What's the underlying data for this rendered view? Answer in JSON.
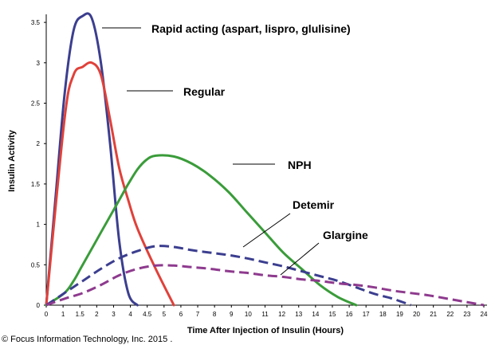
{
  "chart_data": {
    "type": "line",
    "title": "",
    "xlabel": "Time After Injection of Insulin (Hours)",
    "ylabel": "Insulin Activity",
    "x_ticks": [
      "0",
      "1",
      "1.5",
      "2",
      "3",
      "4",
      "4.5",
      "5",
      "6",
      "7",
      "8",
      "9",
      "10",
      "11",
      "12",
      "13",
      "14",
      "15",
      "16",
      "17",
      "18",
      "19",
      "20",
      "21",
      "22",
      "23",
      "24"
    ],
    "y_ticks": [
      "0",
      "0.5",
      "1",
      "1.5",
      "2",
      "2.5",
      "3",
      "3.5"
    ],
    "ylim": [
      0,
      3.6
    ],
    "grid": false,
    "legend": "none",
    "series": [
      {
        "name": "Rapid acting (aspart, lispro, glulisine)",
        "color": "#3b3e8f",
        "style": "solid",
        "points": [
          [
            0,
            0
          ],
          [
            0.5,
            1.3
          ],
          [
            1,
            2.6
          ],
          [
            1.5,
            3.4
          ],
          [
            2,
            3.58
          ],
          [
            2.5,
            3.55
          ],
          [
            3,
            3.0
          ],
          [
            3.5,
            2.0
          ],
          [
            4,
            0.8
          ],
          [
            4.5,
            0.15
          ],
          [
            5,
            0
          ]
        ]
      },
      {
        "name": "Regular",
        "color": "#e0413a",
        "style": "solid",
        "points": [
          [
            0,
            0
          ],
          [
            1,
            2.3
          ],
          [
            1.5,
            2.85
          ],
          [
            2,
            2.95
          ],
          [
            2.5,
            3.0
          ],
          [
            3,
            2.85
          ],
          [
            3.5,
            2.3
          ],
          [
            4,
            1.7
          ],
          [
            4.5,
            1.3
          ],
          [
            5,
            0.95
          ],
          [
            6,
            0.45
          ],
          [
            7,
            0
          ]
        ]
      },
      {
        "name": "NPH",
        "color": "#3a9c3a",
        "style": "solid",
        "points": [
          [
            0,
            0
          ],
          [
            1,
            0.15
          ],
          [
            1.5,
            0.3
          ],
          [
            2,
            0.5
          ],
          [
            3,
            0.9
          ],
          [
            4,
            1.3
          ],
          [
            4.5,
            1.5
          ],
          [
            5,
            1.68
          ],
          [
            5.5,
            1.8
          ],
          [
            6,
            1.85
          ],
          [
            7,
            1.84
          ],
          [
            8,
            1.75
          ],
          [
            9,
            1.6
          ],
          [
            10,
            1.4
          ],
          [
            11,
            1.15
          ],
          [
            12,
            0.9
          ],
          [
            13,
            0.65
          ],
          [
            14,
            0.45
          ],
          [
            15,
            0.25
          ],
          [
            16,
            0.1
          ],
          [
            17,
            0
          ]
        ]
      },
      {
        "name": "Detemir",
        "color": "#3b3e8f",
        "style": "dashed",
        "points": [
          [
            0,
            0
          ],
          [
            1,
            0.15
          ],
          [
            2,
            0.3
          ],
          [
            3,
            0.45
          ],
          [
            4,
            0.58
          ],
          [
            5,
            0.67
          ],
          [
            6,
            0.73
          ],
          [
            7,
            0.72
          ],
          [
            8,
            0.68
          ],
          [
            9,
            0.65
          ],
          [
            10,
            0.62
          ],
          [
            11,
            0.58
          ],
          [
            12,
            0.53
          ],
          [
            13,
            0.48
          ],
          [
            14,
            0.42
          ],
          [
            15,
            0.36
          ],
          [
            16,
            0.3
          ],
          [
            17,
            0.22
          ],
          [
            18,
            0.14
          ],
          [
            19,
            0.08
          ],
          [
            20,
            0
          ]
        ]
      },
      {
        "name": "Glargine",
        "color": "#8e3a8e",
        "style": "dashed",
        "points": [
          [
            0,
            0
          ],
          [
            1,
            0.08
          ],
          [
            2,
            0.15
          ],
          [
            3,
            0.25
          ],
          [
            4,
            0.37
          ],
          [
            5,
            0.45
          ],
          [
            6,
            0.49
          ],
          [
            7,
            0.49
          ],
          [
            8,
            0.47
          ],
          [
            9,
            0.45
          ],
          [
            10,
            0.42
          ],
          [
            11,
            0.4
          ],
          [
            12,
            0.37
          ],
          [
            13,
            0.35
          ],
          [
            14,
            0.32
          ],
          [
            15,
            0.3
          ],
          [
            16,
            0.27
          ],
          [
            17,
            0.25
          ],
          [
            18,
            0.22
          ],
          [
            19,
            0.18
          ],
          [
            20,
            0.15
          ],
          [
            21,
            0.12
          ],
          [
            22,
            0.08
          ],
          [
            23,
            0.04
          ],
          [
            24,
            0
          ]
        ]
      }
    ]
  },
  "copyright": "© Focus Information Technology, Inc. 2015 ."
}
